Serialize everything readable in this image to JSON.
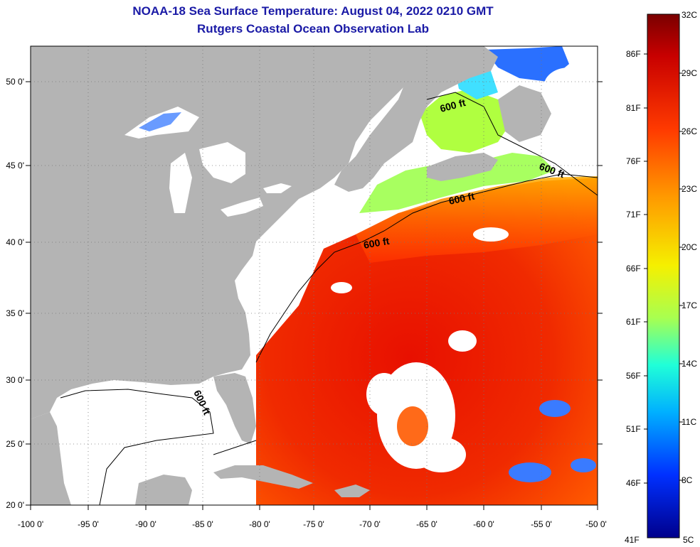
{
  "title": {
    "line1": "NOAA-18 Sea Surface Temperature:  August 04, 2022 0210 GMT",
    "line2": "Rutgers Coastal Ocean Observation Lab"
  },
  "colors": {
    "title": "#1a1aa6",
    "land": "#b4b4b4",
    "cloud": "#ffffff",
    "contour": "#000000"
  },
  "map": {
    "lon_range": [
      -100,
      -50
    ],
    "lat_range": [
      20,
      52
    ],
    "x_ticks": [
      "-100 0'",
      "-95 0'",
      "-90 0'",
      "-85 0'",
      "-80 0'",
      "-75 0'",
      "-70 0'",
      "-65 0'",
      "-60 0'",
      "-55 0'",
      "-50 0'"
    ],
    "y_ticks": [
      "50 0'",
      "45 0'",
      "40 0'",
      "35 0'",
      "30 0'",
      "25 0'",
      "20 0'"
    ],
    "contour_labels": [
      "600 ft",
      "600 ft",
      "600 ft",
      "600 ft",
      "600 ft"
    ],
    "grid": "dotted"
  },
  "colorbar": {
    "celsius_labels": [
      "32C",
      "29C",
      "26C",
      "23C",
      "20C",
      "17C",
      "14C",
      "11C",
      "8C",
      "5C"
    ],
    "fahrenheit_labels": [
      "86F",
      "81F",
      "76F",
      "71F",
      "66F",
      "61F",
      "56F",
      "51F",
      "46F",
      "41F"
    ],
    "range_c": [
      5,
      32
    ]
  }
}
